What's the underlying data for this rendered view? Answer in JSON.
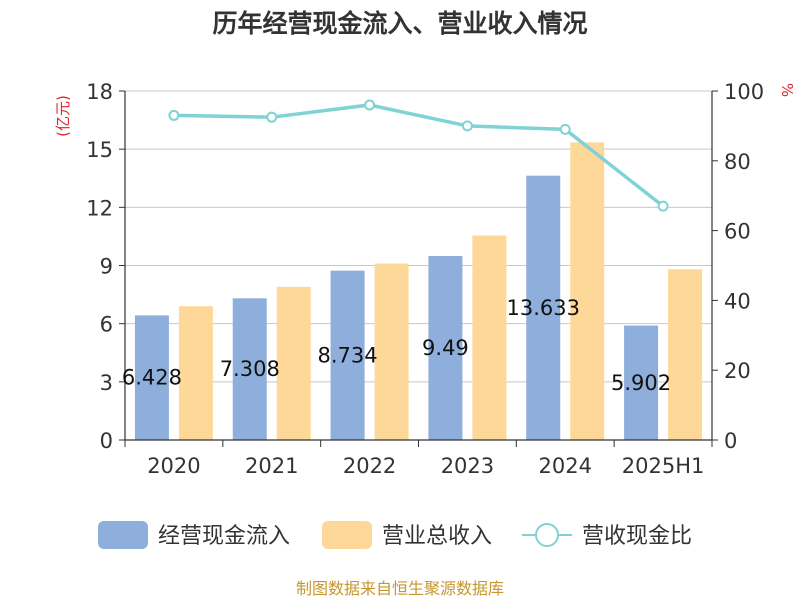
{
  "chart_data": {
    "type": "bar",
    "title": "历年经营现金流入、营业收入情况",
    "categories": [
      "2020",
      "2021",
      "2022",
      "2023",
      "2024",
      "2025H1"
    ],
    "left_axis": {
      "unit": "(亿元)",
      "ylim": [
        0,
        18
      ],
      "ticks": [
        0,
        3,
        6,
        9,
        12,
        15,
        18
      ]
    },
    "right_axis": {
      "unit": "%",
      "ylim": [
        0,
        100
      ],
      "ticks": [
        0,
        20,
        40,
        60,
        80,
        100
      ]
    },
    "series": [
      {
        "name": "经营现金流入",
        "type": "bar",
        "axis": "left",
        "color": "#8eaedb",
        "values": [
          6.428,
          7.308,
          8.734,
          9.49,
          13.633,
          5.902
        ],
        "labels": [
          "6.428",
          "7.308",
          "8.734",
          "9.49",
          "13.633",
          "5.902"
        ]
      },
      {
        "name": "营业总收入",
        "type": "bar",
        "axis": "left",
        "color": "#fed899",
        "values": [
          6.9,
          7.9,
          9.1,
          10.55,
          15.35,
          8.8
        ]
      },
      {
        "name": "营收现金比",
        "type": "line",
        "axis": "right",
        "color": "#7fd3d6",
        "values": [
          93,
          92.5,
          96,
          90,
          89,
          67
        ]
      }
    ],
    "grid": true,
    "legend_position": "bottom"
  },
  "source_text": "制图数据来自恒生聚源数据库"
}
